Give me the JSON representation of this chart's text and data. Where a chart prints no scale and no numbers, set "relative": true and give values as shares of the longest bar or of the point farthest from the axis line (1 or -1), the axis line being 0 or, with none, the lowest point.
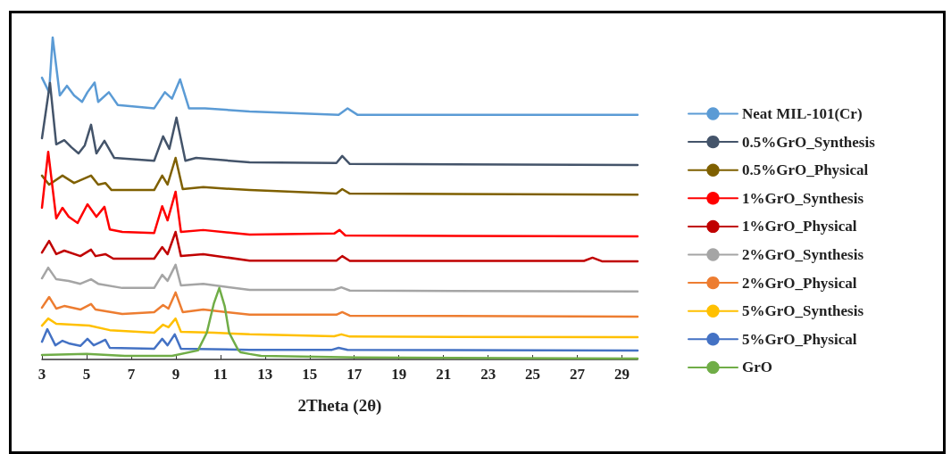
{
  "chart_data": {
    "type": "line",
    "xlabel": "2Theta (2θ)",
    "relative": true,
    "xlim": [
      3,
      29.7
    ],
    "xticks": [
      3,
      5,
      7,
      9,
      11,
      13,
      15,
      17,
      19,
      21,
      23,
      25,
      27,
      29
    ],
    "grid": false,
    "legend": "right",
    "marker": "none",
    "line_style": "solid",
    "series": [
      {
        "name": "Neat MIL-101(Cr)",
        "color": "#5b9bd5",
        "x": [
          3.0,
          3.32,
          3.48,
          3.8,
          4.12,
          4.44,
          4.8,
          5.04,
          5.36,
          5.52,
          6.0,
          6.4,
          8.03,
          8.51,
          8.83,
          9.19,
          9.59,
          10.31,
          12.31,
          16.3,
          16.7,
          17.14,
          29.7
        ],
        "values": [
          0.875,
          0.83,
          1.0,
          0.82,
          0.85,
          0.82,
          0.8,
          0.83,
          0.86,
          0.8,
          0.83,
          0.79,
          0.78,
          0.83,
          0.81,
          0.87,
          0.78,
          0.78,
          0.77,
          0.76,
          0.78,
          0.76,
          0.76
        ]
      },
      {
        "name": "0.5%GrO_Synthesis",
        "color": "#44546a",
        "x": [
          3.0,
          3.36,
          3.64,
          4.0,
          4.32,
          4.64,
          4.92,
          5.2,
          5.44,
          5.8,
          6.24,
          8.03,
          8.43,
          8.71,
          9.03,
          9.43,
          9.91,
          12.31,
          16.2,
          16.46,
          16.8,
          29.7
        ],
        "values": [
          0.687,
          0.859,
          0.668,
          0.681,
          0.659,
          0.64,
          0.665,
          0.729,
          0.64,
          0.679,
          0.626,
          0.617,
          0.693,
          0.654,
          0.751,
          0.617,
          0.626,
          0.612,
          0.61,
          0.632,
          0.607,
          0.604
        ]
      },
      {
        "name": "0.5%GrO_Physical",
        "color": "#7f6000",
        "x": [
          3.0,
          3.32,
          3.92,
          4.44,
          5.2,
          5.52,
          5.84,
          6.12,
          8.03,
          8.39,
          8.63,
          8.99,
          9.31,
          10.23,
          12.31,
          16.2,
          16.46,
          16.8,
          29.7
        ],
        "values": [
          0.571,
          0.543,
          0.571,
          0.548,
          0.571,
          0.543,
          0.548,
          0.526,
          0.526,
          0.571,
          0.543,
          0.626,
          0.529,
          0.535,
          0.526,
          0.515,
          0.529,
          0.515,
          0.512
        ]
      },
      {
        "name": "1%GrO_Synthesis",
        "color": "#ff0000",
        "x": [
          3.0,
          3.28,
          3.64,
          3.92,
          4.2,
          4.6,
          5.04,
          5.44,
          5.8,
          6.04,
          6.6,
          8.03,
          8.39,
          8.63,
          8.99,
          9.23,
          10.23,
          12.31,
          16.1,
          16.34,
          16.6,
          29.7
        ],
        "values": [
          0.471,
          0.645,
          0.438,
          0.471,
          0.443,
          0.424,
          0.482,
          0.443,
          0.474,
          0.404,
          0.396,
          0.393,
          0.476,
          0.432,
          0.521,
          0.396,
          0.402,
          0.388,
          0.391,
          0.402,
          0.385,
          0.382
        ]
      },
      {
        "name": "1%GrO_Physical",
        "color": "#c00000",
        "x": [
          3.0,
          3.32,
          3.64,
          4.0,
          4.72,
          5.2,
          5.4,
          5.84,
          6.2,
          8.03,
          8.39,
          8.63,
          8.99,
          9.23,
          10.23,
          12.31,
          16.2,
          16.46,
          16.8,
          27.3,
          27.68,
          28.1,
          29.7
        ],
        "values": [
          0.332,
          0.368,
          0.327,
          0.338,
          0.321,
          0.341,
          0.321,
          0.327,
          0.313,
          0.313,
          0.349,
          0.327,
          0.396,
          0.321,
          0.327,
          0.307,
          0.307,
          0.321,
          0.306,
          0.306,
          0.316,
          0.305,
          0.305
        ]
      },
      {
        "name": "2%GrO_Synthesis",
        "color": "#a5a5a5",
        "x": [
          3.0,
          3.28,
          3.64,
          4.2,
          4.72,
          5.2,
          5.52,
          6.6,
          8.03,
          8.39,
          8.63,
          8.99,
          9.23,
          10.23,
          12.31,
          16.1,
          16.42,
          16.8,
          29.7
        ],
        "values": [
          0.252,
          0.285,
          0.249,
          0.244,
          0.235,
          0.249,
          0.235,
          0.222,
          0.222,
          0.263,
          0.244,
          0.294,
          0.23,
          0.235,
          0.216,
          0.216,
          0.224,
          0.214,
          0.211
        ]
      },
      {
        "name": "2%GrO_Physical",
        "color": "#ed7d31",
        "x": [
          3.0,
          3.32,
          3.64,
          4.0,
          4.72,
          5.2,
          5.4,
          6.6,
          8.03,
          8.43,
          8.67,
          8.99,
          9.31,
          10.23,
          12.31,
          16.2,
          16.46,
          16.8,
          29.7
        ],
        "values": [
          0.161,
          0.194,
          0.158,
          0.166,
          0.155,
          0.172,
          0.155,
          0.141,
          0.147,
          0.169,
          0.158,
          0.208,
          0.147,
          0.155,
          0.139,
          0.139,
          0.147,
          0.136,
          0.133
        ]
      },
      {
        "name": "5%GrO_Synthesis",
        "color": "#ffc000",
        "x": [
          3.0,
          3.28,
          3.64,
          5.12,
          6.04,
          8.03,
          8.43,
          8.67,
          8.99,
          9.23,
          10.71,
          12.31,
          16.1,
          16.42,
          16.8,
          29.7
        ],
        "values": [
          0.105,
          0.127,
          0.111,
          0.105,
          0.091,
          0.083,
          0.108,
          0.1,
          0.127,
          0.086,
          0.083,
          0.078,
          0.072,
          0.078,
          0.071,
          0.069
        ]
      },
      {
        "name": "5%GrO_Physical",
        "color": "#4472c4",
        "x": [
          3.0,
          3.24,
          3.6,
          3.92,
          4.2,
          4.72,
          5.04,
          5.32,
          5.6,
          5.84,
          6.04,
          8.03,
          8.39,
          8.63,
          8.95,
          9.23,
          12.31,
          16.0,
          16.3,
          16.7,
          29.7
        ],
        "values": [
          0.055,
          0.094,
          0.044,
          0.058,
          0.05,
          0.042,
          0.064,
          0.044,
          0.053,
          0.061,
          0.036,
          0.033,
          0.064,
          0.044,
          0.078,
          0.033,
          0.03,
          0.03,
          0.036,
          0.03,
          0.028
        ]
      },
      {
        "name": "GrO",
        "color": "#70ad47",
        "x": [
          3.0,
          5.0,
          6.72,
          8.83,
          9.99,
          10.39,
          10.71,
          10.95,
          11.19,
          11.39,
          11.79,
          11.91,
          12.31,
          12.82,
          17.14,
          29.7
        ],
        "values": [
          0.014,
          0.017,
          0.011,
          0.011,
          0.028,
          0.083,
          0.175,
          0.222,
          0.166,
          0.083,
          0.03,
          0.022,
          0.017,
          0.011,
          0.006,
          0.003
        ]
      }
    ]
  }
}
